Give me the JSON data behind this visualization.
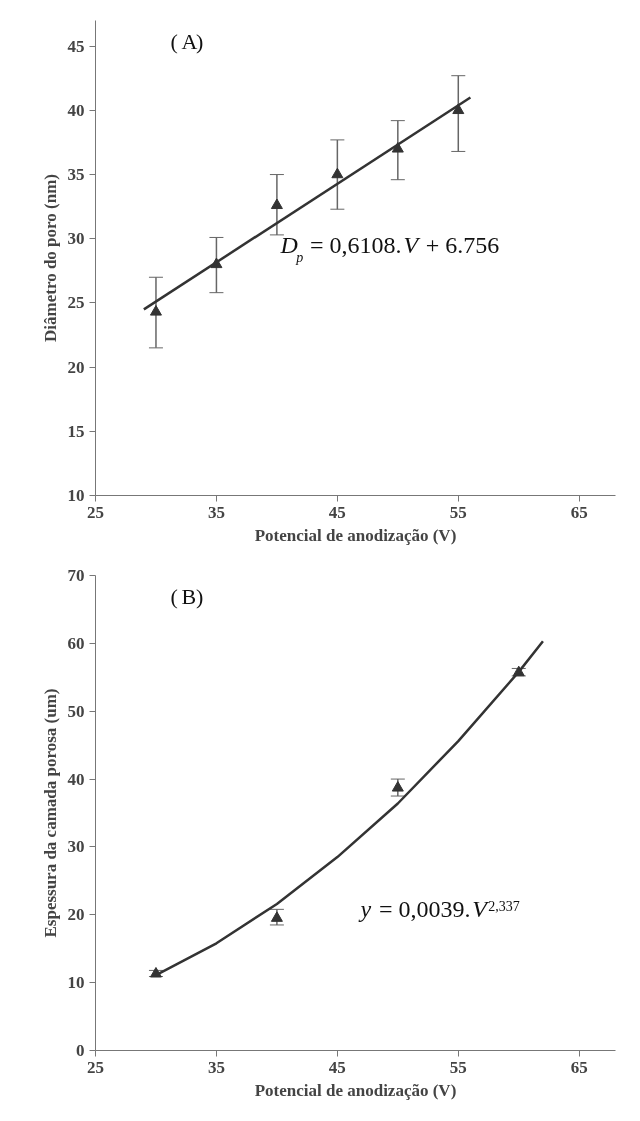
{
  "chart_data": [
    {
      "type": "scatter",
      "xlabel": "Potencial de anodização (V)",
      "ylabel": "Diâmetro do poro (nm)",
      "xlim": [
        25,
        68
      ],
      "ylim": [
        10,
        47
      ],
      "xticks": [
        25,
        35,
        45,
        55,
        65
      ],
      "yticks": [
        10,
        15,
        20,
        25,
        30,
        35,
        40,
        45
      ],
      "grid": false,
      "annotations": [
        "(A)",
        "D$_{p}$ = 0,6108.V + 6.756"
      ],
      "series": [
        {
          "marker": "triangle",
          "color": "#333333",
          "x": [
            30,
            35,
            40,
            45,
            50,
            55
          ],
          "values": [
            24.3,
            28,
            32.6,
            35,
            37,
            40
          ],
          "errors": [
            [
              21.5,
              27
            ],
            [
              25.8,
              30.1
            ],
            [
              30.3,
              35
            ],
            [
              32.3,
              37.7
            ],
            [
              34.6,
              39.2
            ],
            [
              36.8,
              42.7
            ]
          ]
        },
        {
          "type": "line",
          "color": "#333333",
          "x": [
            29,
            56
          ],
          "values": [
            24.5,
            41.0
          ]
        }
      ]
    },
    {
      "type": "scatter",
      "xlabel": "Potencial de anodização (V)",
      "ylabel": "Espessura da camada porosa (um)",
      "xlim": [
        25,
        68
      ],
      "ylim": [
        0,
        70
      ],
      "xticks": [
        25,
        35,
        45,
        55,
        65
      ],
      "yticks": [
        0,
        10,
        20,
        30,
        40,
        50,
        60,
        70
      ],
      "grid": false,
      "annotations": [
        "(B)",
        "y = 0,0039.V$^{2,337}$"
      ],
      "series": [
        {
          "marker": "triangle",
          "color": "#333333",
          "x": [
            30,
            40,
            50,
            60
          ],
          "values": [
            11.3,
            19.5,
            38.7,
            55.7
          ],
          "errors": [
            [
              10.9,
              11.8
            ],
            [
              18.5,
              20.8
            ],
            [
              37.5,
              40
            ],
            [
              55.2,
              56.3
            ]
          ]
        },
        {
          "type": "line",
          "color": "#333333",
          "x": [
            30,
            35,
            40,
            45,
            50,
            55,
            60,
            62
          ],
          "values": [
            11.1,
            15.8,
            21.6,
            28.5,
            36.4,
            45.6,
            55.8,
            60.3
          ]
        }
      ]
    }
  ]
}
